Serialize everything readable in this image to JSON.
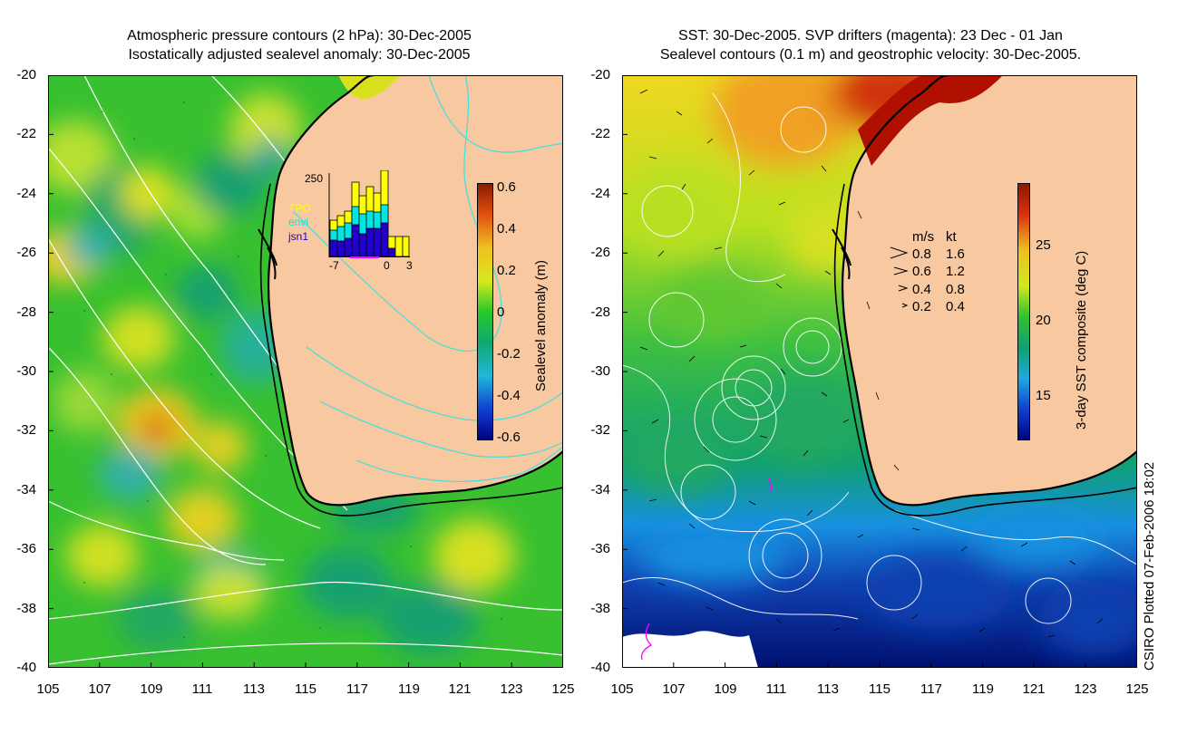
{
  "left_panel": {
    "title_line1": "Atmospheric pressure contours (2 hPa): 30-Dec-2005",
    "title_line2": "Isostatically adjusted sealevel anomaly: 30-Dec-2005",
    "y_ticks": [
      "-20",
      "-22",
      "-24",
      "-26",
      "-28",
      "-30",
      "-32",
      "-34",
      "-36",
      "-38",
      "-40"
    ],
    "x_ticks": [
      "105",
      "107",
      "109",
      "111",
      "113",
      "115",
      "117",
      "119",
      "121",
      "123",
      "125"
    ],
    "colorbar": {
      "label": "Sealevel anomaly (m)",
      "ticks": [
        "0.6",
        "0.4",
        "0.2",
        "0",
        "-0.2",
        "-0.4",
        "-0.6"
      ]
    },
    "inset": {
      "max_label": "250",
      "legend": [
        "TPO",
        "envi",
        "jsn1"
      ],
      "legend_colors": [
        "#ffff00",
        "#00e5e5",
        "#2200cc"
      ],
      "x_labels": [
        "-7",
        "0",
        "3"
      ]
    }
  },
  "right_panel": {
    "title_line1": "SST: 30-Dec-2005. SVP drifters (magenta): 23 Dec - 01 Jan",
    "title_line2": "Sealevel contours (0.1 m) and geostrophic velocity: 30-Dec-2005.",
    "y_ticks": [
      "-20",
      "-22",
      "-24",
      "-26",
      "-28",
      "-30",
      "-32",
      "-34",
      "-36",
      "-38",
      "-40"
    ],
    "x_ticks": [
      "105",
      "107",
      "109",
      "111",
      "113",
      "115",
      "117",
      "119",
      "121",
      "123",
      "125"
    ],
    "colorbar": {
      "label": "3-day SST composite (deg C)",
      "ticks": [
        "25",
        "20",
        "15"
      ]
    },
    "velocity_legend": {
      "header_ms": "m/s",
      "header_kt": "kt",
      "rows": [
        {
          "ms": "0.8",
          "kt": "1.6"
        },
        {
          "ms": "0.6",
          "kt": "1.2"
        },
        {
          "ms": "0.4",
          "kt": "0.8"
        },
        {
          "ms": "0.2",
          "kt": "0.4"
        }
      ]
    }
  },
  "credit": "CSIRO Plotted 07-Feb-2006 18:02",
  "colors": {
    "land": "#f8c8a0",
    "ocean_green": "#28c828",
    "coast": "#000000",
    "contour_left": "#ffffff",
    "contour_land": "#40e0e0"
  }
}
